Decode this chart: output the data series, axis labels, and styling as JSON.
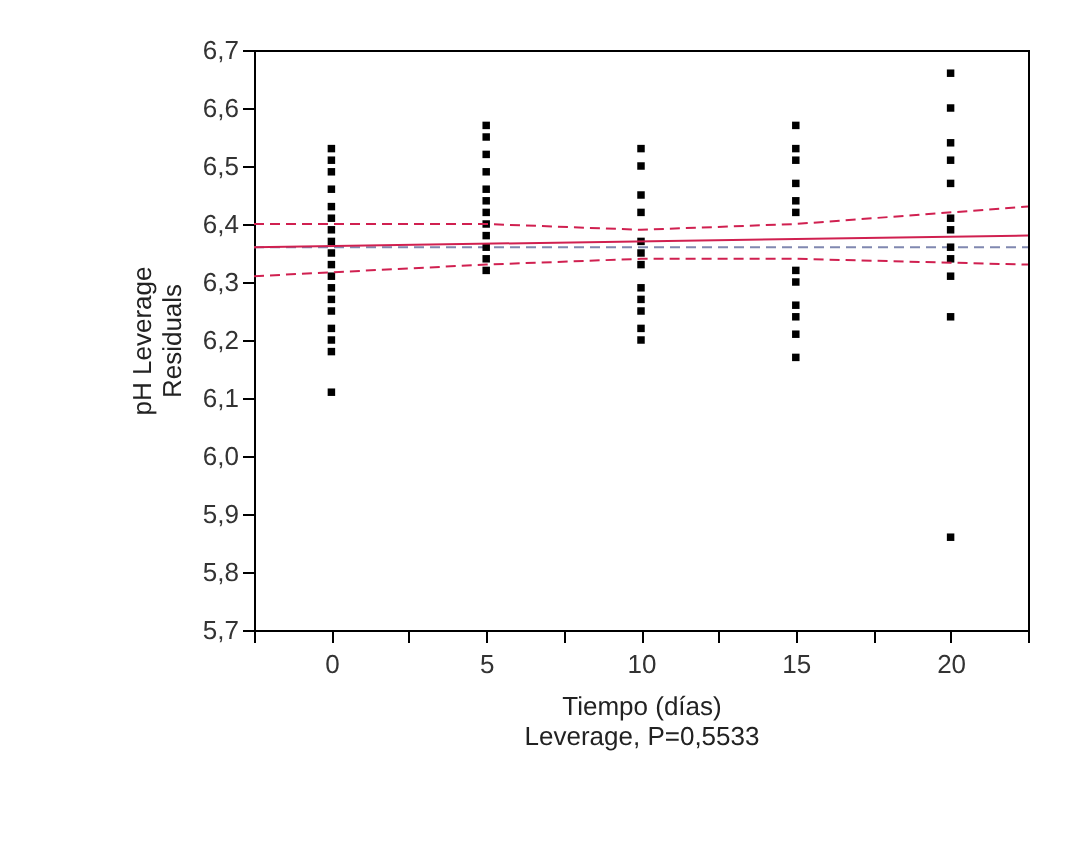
{
  "chart_data": {
    "type": "scatter",
    "xlabel": "Tiempo (días)",
    "ylabel": "pH Leverage\nResiduals",
    "annotations": [
      "Leverage, P=0,5533"
    ],
    "xlim": [
      -2.5,
      22.5
    ],
    "xticks": [
      {
        "value": -2.5,
        "label": null
      },
      0,
      {
        "value": 2.5,
        "label": null
      },
      5,
      {
        "value": 7.5,
        "label": null
      },
      10,
      {
        "value": 12.5,
        "label": null
      },
      15,
      {
        "value": 17.5,
        "label": null
      },
      20,
      {
        "value": 22.5,
        "label": null
      }
    ],
    "ylim": [
      5.7,
      6.7
    ],
    "yticks": [
      {
        "value": 5.7,
        "label": "5,7"
      },
      {
        "value": 5.8,
        "label": "5,8"
      },
      {
        "value": 5.9,
        "label": "5,9"
      },
      {
        "value": 6.0,
        "label": "6,0"
      },
      {
        "value": 6.1,
        "label": "6,1"
      },
      {
        "value": 6.2,
        "label": "6,2"
      },
      {
        "value": 6.3,
        "label": "6,3"
      },
      {
        "value": 6.4,
        "label": "6,4"
      },
      {
        "value": 6.5,
        "label": "6,5"
      },
      {
        "value": 6.6,
        "label": "6,6"
      },
      {
        "value": 6.7,
        "label": "6,7"
      }
    ],
    "ref_lines": [
      {
        "axis": "y",
        "value": 6.36,
        "color": "#8088b0",
        "line_style": "dashed"
      }
    ],
    "series": [
      {
        "marker": "square",
        "color": "#000000",
        "x": [
          0,
          0,
          0,
          0,
          0,
          0,
          0,
          0,
          0,
          0,
          0,
          0,
          0,
          0,
          0,
          0,
          0,
          0,
          5,
          5,
          5,
          5,
          5,
          5,
          5,
          5,
          5,
          5,
          5,
          5,
          10,
          10,
          10,
          10,
          10,
          10,
          10,
          10,
          10,
          10,
          10,
          10,
          15,
          15,
          15,
          15,
          15,
          15,
          15,
          15,
          15,
          15,
          15,
          15,
          20,
          20,
          20,
          20,
          20,
          20,
          20,
          20,
          20,
          20,
          20,
          20
        ],
        "values": [
          6.53,
          6.51,
          6.49,
          6.46,
          6.43,
          6.41,
          6.39,
          6.37,
          6.35,
          6.33,
          6.31,
          6.29,
          6.27,
          6.25,
          6.22,
          6.2,
          6.18,
          6.11,
          6.57,
          6.55,
          6.52,
          6.49,
          6.46,
          6.44,
          6.42,
          6.4,
          6.38,
          6.36,
          6.34,
          6.32,
          6.53,
          6.5,
          6.45,
          6.42,
          6.37,
          6.35,
          6.33,
          6.29,
          6.27,
          6.25,
          6.22,
          6.2,
          6.57,
          6.53,
          6.51,
          6.47,
          6.44,
          6.42,
          6.32,
          6.3,
          6.26,
          6.24,
          6.21,
          6.17,
          6.66,
          6.6,
          6.54,
          6.51,
          6.47,
          6.41,
          6.39,
          6.36,
          6.34,
          6.31,
          6.24,
          5.86
        ]
      },
      {
        "type": "line",
        "color": "#d02050",
        "line_style": "solid",
        "x": [
          -2.5,
          22.5
        ],
        "values": [
          6.36,
          6.38
        ]
      },
      {
        "type": "line",
        "color": "#d02050",
        "line_style": "dashed",
        "x": [
          -2.5,
          5,
          10,
          15,
          22.5
        ],
        "values": [
          6.4,
          6.4,
          6.39,
          6.4,
          6.43
        ]
      },
      {
        "type": "line",
        "color": "#d02050",
        "line_style": "dashed",
        "x": [
          -2.5,
          5,
          10,
          15,
          22.5
        ],
        "values": [
          6.31,
          6.33,
          6.34,
          6.34,
          6.33
        ]
      }
    ]
  }
}
